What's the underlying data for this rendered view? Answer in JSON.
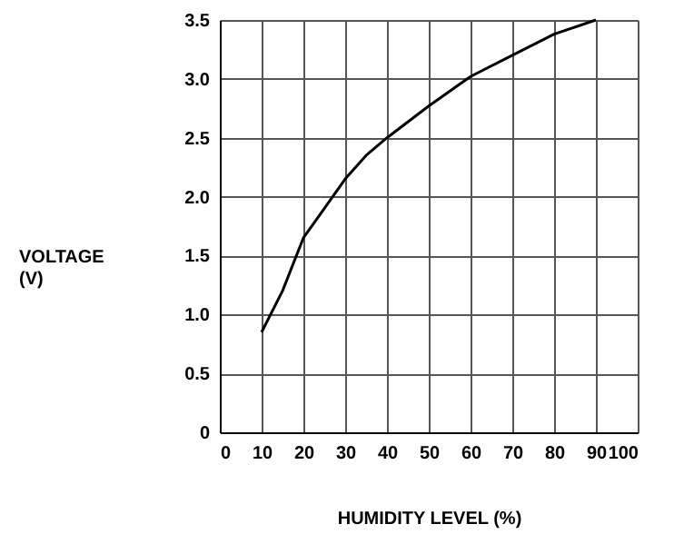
{
  "chart_data": {
    "type": "line",
    "xlabel": "HUMIDITY LEVEL (%)",
    "ylabel": "VOLTAGE\n(V)",
    "x": [
      10,
      15,
      20,
      25,
      30,
      35,
      40,
      50,
      60,
      70,
      80,
      90
    ],
    "series": [
      {
        "color": "#000000",
        "values": [
          0.85,
          1.2,
          1.65,
          1.9,
          2.15,
          2.35,
          2.5,
          2.77,
          3.02,
          3.2,
          3.38,
          3.5
        ]
      }
    ],
    "xlim": [
      0,
      100
    ],
    "xticks": [
      0,
      10,
      20,
      30,
      40,
      50,
      60,
      70,
      80,
      90,
      100
    ],
    "ylim": [
      0,
      3.5
    ],
    "yticks": [
      0,
      {
        "value": 0.5,
        "label": "0.5"
      },
      {
        "value": 1,
        "label": "1.0"
      },
      {
        "value": 1.5,
        "label": "1.5"
      },
      {
        "value": 2,
        "label": "2.0"
      },
      {
        "value": 2.5,
        "label": "2.5"
      },
      {
        "value": 3,
        "label": "3.0"
      },
      {
        "value": 3.5,
        "label": "3.5"
      }
    ],
    "grid": true,
    "marker": "none",
    "line_style": "solid"
  }
}
